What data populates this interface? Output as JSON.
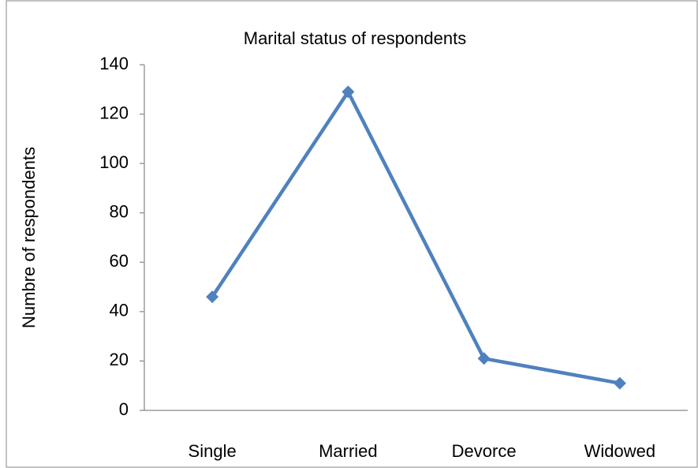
{
  "chart_data": {
    "type": "line",
    "title": "Marital status of respondents",
    "y_label": "Numbre of respondents",
    "categories": [
      "Single",
      "Married",
      "Devorce",
      "Widowed"
    ],
    "series": [
      {
        "name": "Number of respondents",
        "color": "#4f81bd",
        "values": [
          46,
          129,
          21,
          11
        ]
      }
    ],
    "ylim": [
      0,
      140
    ],
    "yticks": [
      0,
      20,
      40,
      60,
      80,
      100,
      120,
      140
    ],
    "grid": false,
    "legend": false
  }
}
